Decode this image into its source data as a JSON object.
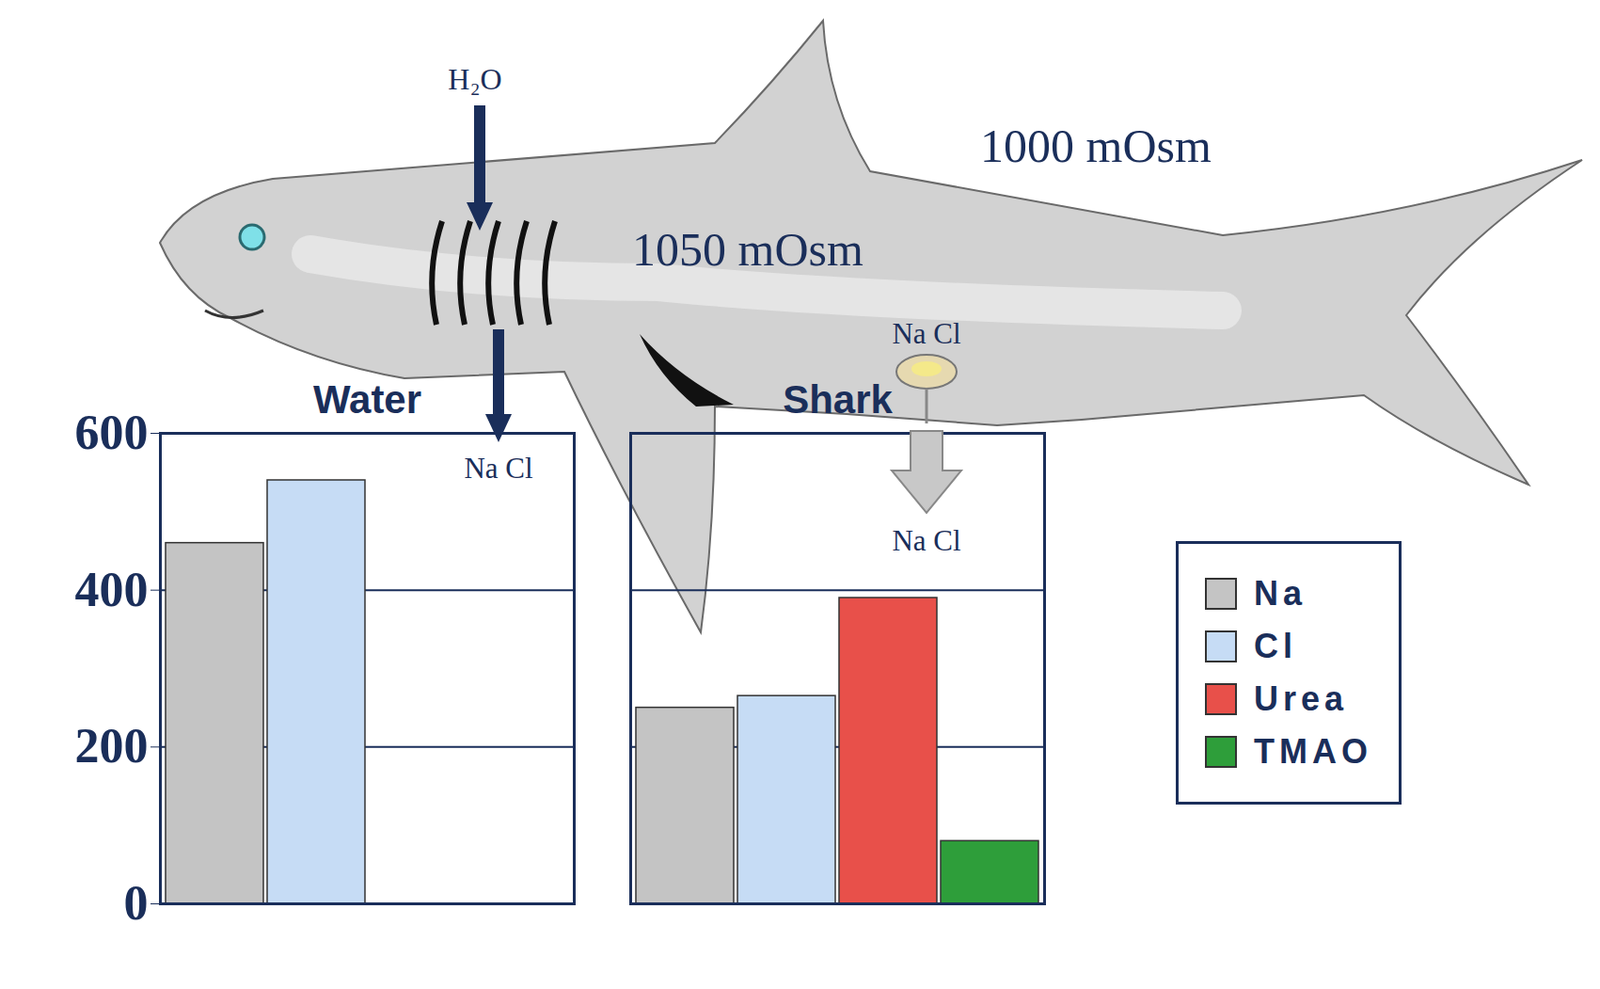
{
  "chart_data": {
    "type": "bar",
    "categories": [
      "Water",
      "Shark"
    ],
    "series": [
      {
        "name": "Na",
        "color": "#c4c4c4",
        "values": [
          460,
          250
        ]
      },
      {
        "name": "Cl",
        "color": "#c6dcf5",
        "values": [
          540,
          265
        ]
      },
      {
        "name": "Urea",
        "color": "#e8504a",
        "values": [
          0,
          390
        ]
      },
      {
        "name": "TMAO",
        "color": "#2e9e3a",
        "values": [
          0,
          80
        ]
      }
    ],
    "ylim": [
      0,
      600
    ],
    "yticks": [
      0,
      200,
      400,
      600
    ],
    "grid": true,
    "legend": "right",
    "annotations": [
      "H₂O",
      "1000 mOsm",
      "1050 mOsm",
      "Na Cl",
      "Na Cl",
      "Na Cl"
    ]
  }
}
